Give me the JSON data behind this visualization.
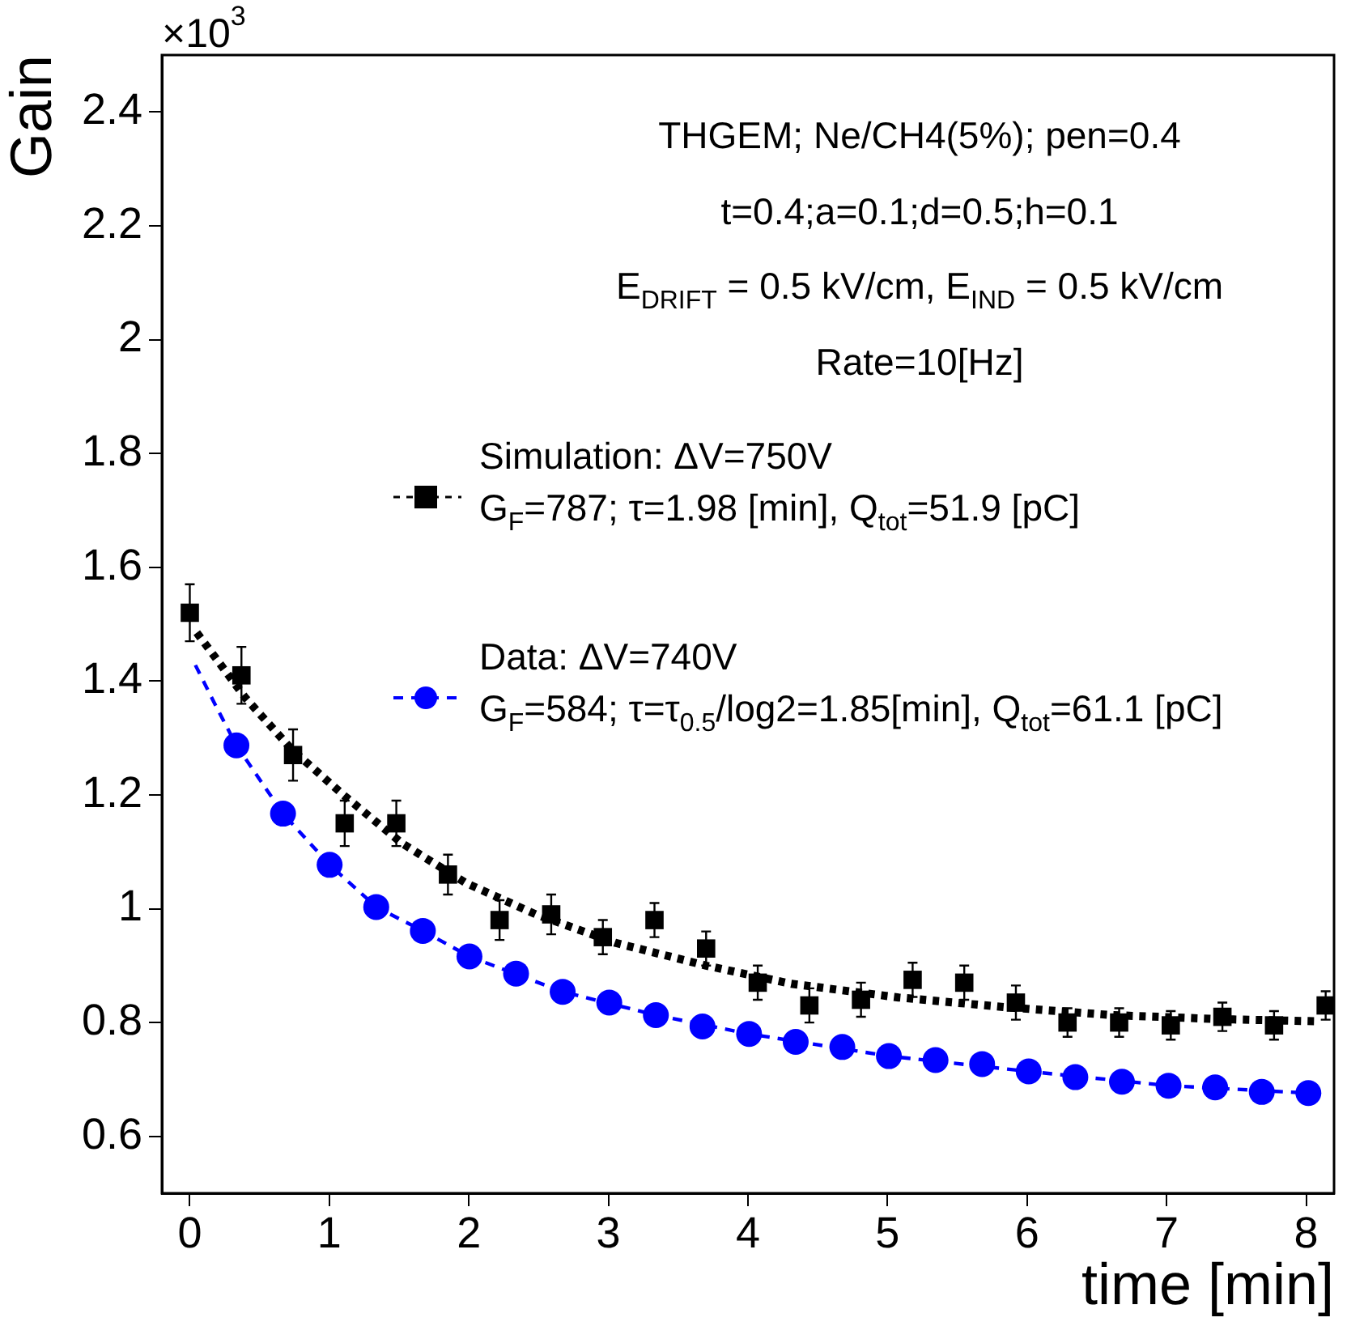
{
  "chart_data": {
    "type": "scatter",
    "xlabel": "time [min]",
    "ylabel": "Gain",
    "annotations": [
      "THGEM; Ne/CH4(5%); pen=0.4",
      "t=0.4;a=0.1;d=0.5;h=0.1",
      "E$_{DRIFT}$ = 0.5 kV/cm, E$_{IND}$ = 0.5 kV/cm",
      "Rate=10[Hz]",
      "×10$^{3}$"
    ],
    "xlim": [
      -0.2,
      8.2
    ],
    "xticks": [
      0,
      1,
      2,
      3,
      4,
      5,
      6,
      7,
      8
    ],
    "ylim": [
      0.5,
      2.5
    ],
    "yticks": [
      0.6,
      0.8,
      1,
      1.2,
      1.4,
      1.6,
      1.8,
      2,
      2.2,
      2.4
    ],
    "grid": false,
    "legend": "right",
    "series": [
      {
        "name": "Simulation: ΔV=750V\nG$_{F}$=787; τ=1.98 [min], Q$_{tot}$=51.9 [pC]",
        "marker": "square",
        "color": "#000000",
        "x": [
          0,
          0.37,
          0.74,
          1.11,
          1.48,
          1.85,
          2.22,
          2.59,
          2.96,
          3.33,
          3.7,
          4.07,
          4.44,
          4.81,
          5.18,
          5.55,
          5.92,
          6.29,
          6.66,
          7.03,
          7.4,
          7.77,
          8.14
        ],
        "values": [
          1.52,
          1.41,
          1.27,
          1.15,
          1.15,
          1.06,
          0.98,
          0.99,
          0.95,
          0.98,
          0.93,
          0.87,
          0.83,
          0.84,
          0.875,
          0.87,
          0.835,
          0.8,
          0.8,
          0.795,
          0.81,
          0.795,
          0.83
        ],
        "errors": [
          0.05,
          0.05,
          0.045,
          0.04,
          0.04,
          0.035,
          0.035,
          0.035,
          0.03,
          0.03,
          0.03,
          0.03,
          0.03,
          0.03,
          0.03,
          0.03,
          0.03,
          0.025,
          0.025,
          0.025,
          0.025,
          0.025,
          0.025
        ]
      },
      {
        "type": "line",
        "marker": "none",
        "line_style": "dotted",
        "color": "#000000",
        "x": [
          0.05,
          0.4,
          0.73,
          1.1,
          1.52,
          1.98,
          2.48,
          3.05,
          3.7,
          4.31,
          5.08,
          5.84,
          6.61,
          7.37,
          8.1
        ],
        "values": [
          1.485,
          1.37,
          1.28,
          1.2,
          1.115,
          1.045,
          0.99,
          0.94,
          0.9,
          0.868,
          0.844,
          0.827,
          0.813,
          0.806,
          0.802
        ]
      },
      {
        "name": "Data: ΔV=740V\nG$_{F}$=584; τ=τ$_{0.5}$/log2=1.85[min], Q$_{tot}$=61.1 [pC]",
        "marker": "circle",
        "color": "#0000ff",
        "x": [
          0.334,
          0.668,
          1.002,
          1.336,
          1.67,
          2.004,
          2.338,
          2.672,
          3.006,
          3.34,
          3.674,
          4.008,
          4.342,
          4.676,
          5.01,
          5.344,
          5.678,
          6.012,
          6.346,
          6.68,
          7.014,
          7.348,
          7.682,
          8.016
        ],
        "values": [
          1.287,
          1.167,
          1.077,
          1.003,
          0.961,
          0.916,
          0.886,
          0.854,
          0.835,
          0.813,
          0.793,
          0.78,
          0.766,
          0.757,
          0.741,
          0.734,
          0.727,
          0.714,
          0.704,
          0.696,
          0.689,
          0.686,
          0.678,
          0.676
        ]
      },
      {
        "type": "line",
        "marker": "none",
        "line_style": "dashed",
        "color": "#0000ff",
        "x": [
          0.04,
          0.185,
          0.334,
          0.668,
          1.002,
          1.336,
          1.67,
          2.004,
          2.672,
          3.34,
          4.008,
          5.01,
          6.012,
          7.014,
          8.016
        ],
        "values": [
          1.428,
          1.357,
          1.287,
          1.167,
          1.077,
          1.003,
          0.961,
          0.916,
          0.854,
          0.813,
          0.78,
          0.741,
          0.714,
          0.689,
          0.676
        ]
      }
    ]
  }
}
